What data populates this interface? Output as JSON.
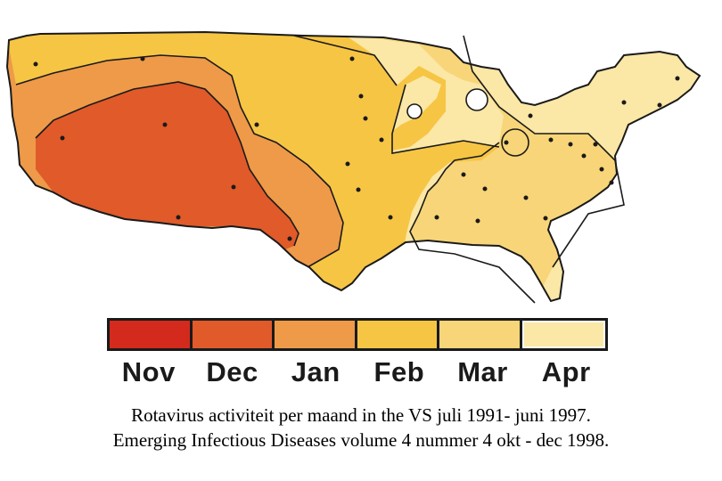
{
  "legend": {
    "items": [
      {
        "label": "Nov",
        "color": "#d42a1e"
      },
      {
        "label": "Dec",
        "color": "#e05a2a"
      },
      {
        "label": "Jan",
        "color": "#ee9a48"
      },
      {
        "label": "Feb",
        "color": "#f6c544"
      },
      {
        "label": "Mar",
        "color": "#f8d578"
      },
      {
        "label": "Apr",
        "color": "#fbe7a6"
      }
    ]
  },
  "map": {
    "colors": {
      "land_base": "#fbe7a6",
      "mar": "#f8d578",
      "feb": "#f6c544",
      "jan": "#ee9a48",
      "dec": "#e05a2a",
      "lake": "#ffffff",
      "outline": "#1a1a1a"
    }
  },
  "caption": {
    "line1": "Rotavirus activiteit per maand in the VS juli 1991- juni 1997.",
    "line2": "Emerging Infectious Diseases volume 4 nummer 4 okt - dec 1998."
  }
}
